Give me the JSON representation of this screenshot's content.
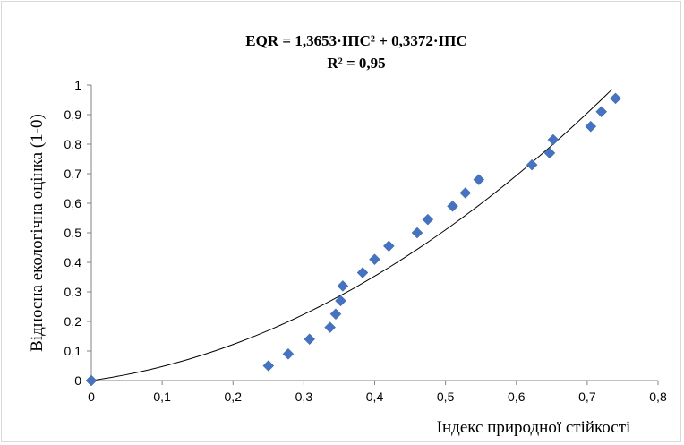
{
  "chart_data": {
    "type": "scatter",
    "title_line1": "EQR = 1,3653·ІПС² + 0,3372·ІПС",
    "title_line2": "R² = 0,95",
    "xlabel": "Індекс природної стійкості",
    "ylabel": "Відносна екологічна оцінка (1-0)",
    "xlim": [
      0,
      0.8
    ],
    "ylim": [
      0,
      1
    ],
    "x_ticks": [
      "0",
      "0,1",
      "0,2",
      "0,3",
      "0,4",
      "0,5",
      "0,6",
      "0,7",
      "0,8"
    ],
    "y_ticks": [
      "0",
      "0,1",
      "0,2",
      "0,3",
      "0,4",
      "0,5",
      "0,6",
      "0,7",
      "0,8",
      "0,9",
      "1"
    ],
    "grid": false,
    "marker": "diamond",
    "colors": {
      "points": "#4472c4",
      "trendline": "#000000",
      "axes": "#808080"
    },
    "points": [
      {
        "x": 0.0,
        "y": 0.0
      },
      {
        "x": 0.25,
        "y": 0.05
      },
      {
        "x": 0.278,
        "y": 0.09
      },
      {
        "x": 0.308,
        "y": 0.14
      },
      {
        "x": 0.337,
        "y": 0.18
      },
      {
        "x": 0.345,
        "y": 0.225
      },
      {
        "x": 0.352,
        "y": 0.27
      },
      {
        "x": 0.355,
        "y": 0.32
      },
      {
        "x": 0.383,
        "y": 0.365
      },
      {
        "x": 0.4,
        "y": 0.41
      },
      {
        "x": 0.42,
        "y": 0.455
      },
      {
        "x": 0.46,
        "y": 0.5
      },
      {
        "x": 0.475,
        "y": 0.545
      },
      {
        "x": 0.51,
        "y": 0.59
      },
      {
        "x": 0.528,
        "y": 0.635
      },
      {
        "x": 0.547,
        "y": 0.68
      },
      {
        "x": 0.622,
        "y": 0.73
      },
      {
        "x": 0.647,
        "y": 0.77
      },
      {
        "x": 0.652,
        "y": 0.815
      },
      {
        "x": 0.705,
        "y": 0.86
      },
      {
        "x": 0.72,
        "y": 0.91
      },
      {
        "x": 0.74,
        "y": 0.955
      }
    ],
    "trendline": {
      "type": "polynomial",
      "coefficients": {
        "a2": 1.3653,
        "a1": 0.3372,
        "a0": 0
      },
      "x_range": [
        0,
        0.735
      ]
    }
  }
}
